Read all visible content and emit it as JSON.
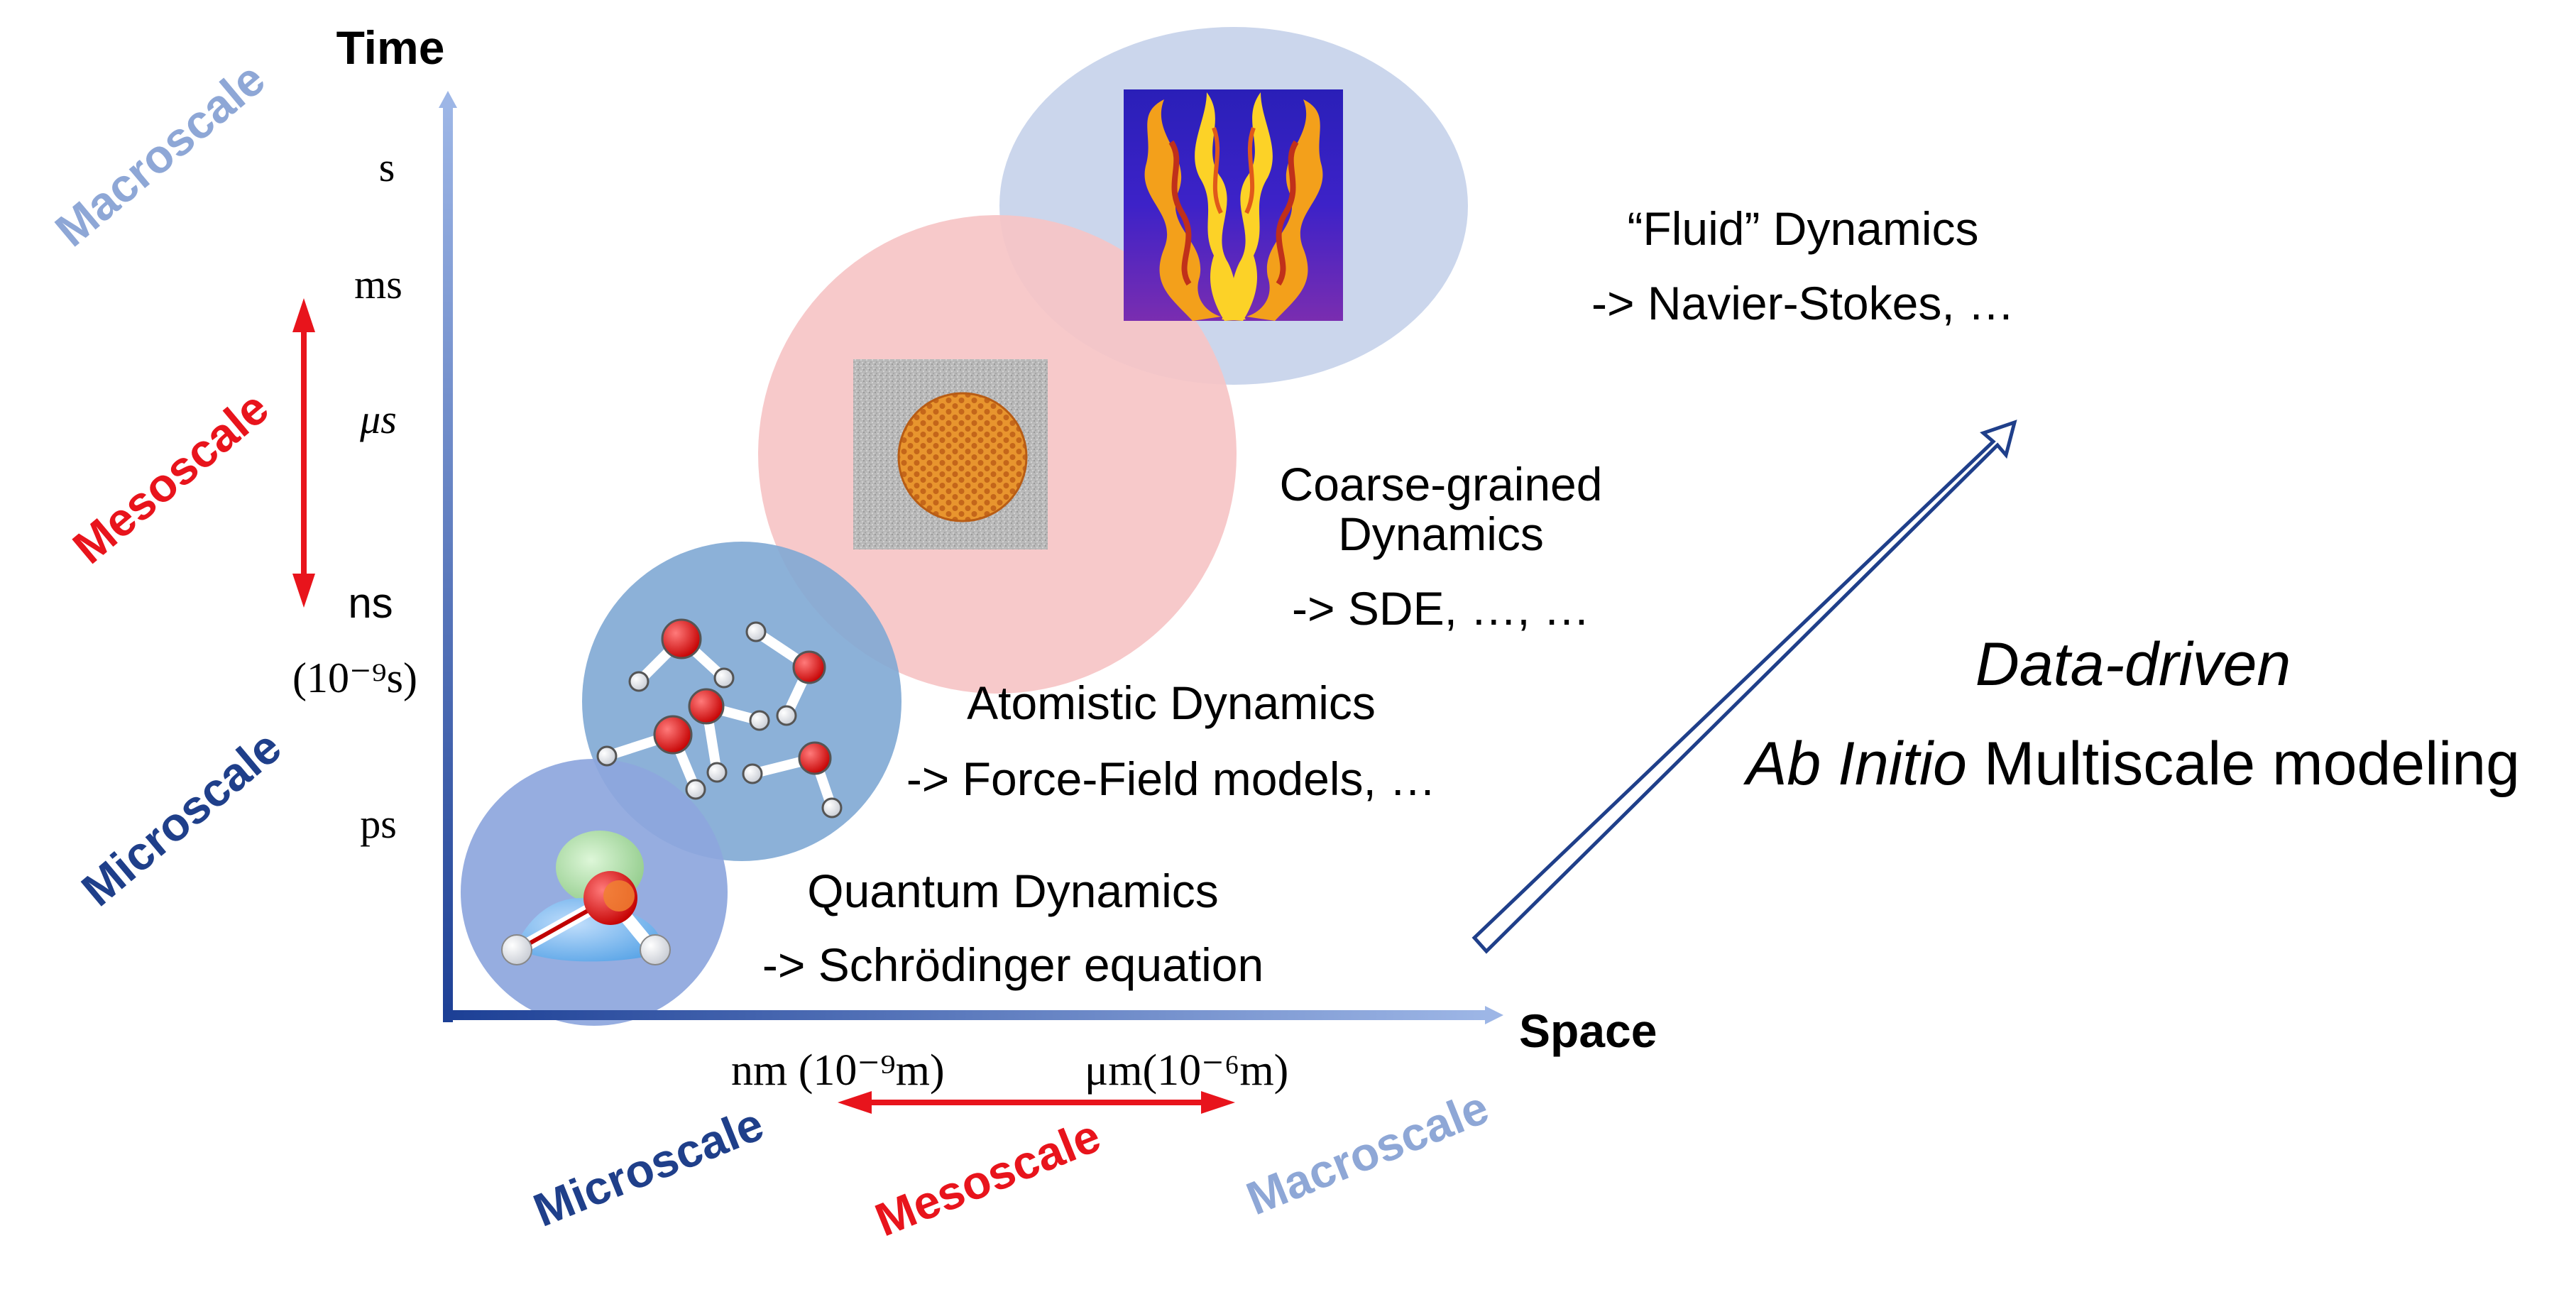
{
  "axes": {
    "time_label": "Time",
    "space_label": "Space",
    "time_ticks": [
      {
        "label": "s"
      },
      {
        "label": "ms"
      },
      {
        "label": "μs"
      },
      {
        "label": "ns"
      },
      {
        "label": "(10⁻⁹s)"
      },
      {
        "label": "ps"
      }
    ],
    "space_ticks": [
      {
        "label": "nm (10⁻⁹m)"
      },
      {
        "label": "μm(10⁻⁶m)"
      }
    ]
  },
  "scales": {
    "vertical": {
      "macro": "Macroscale",
      "meso": "Mesoscale",
      "micro": "Microscale"
    },
    "horizontal": {
      "micro": "Microscale",
      "meso": "Mesoscale",
      "macro": "Macroscale"
    }
  },
  "levels": {
    "quantum": {
      "title": "Quantum Dynamics",
      "model": "-> Schrödinger equation"
    },
    "atomistic": {
      "title": "Atomistic Dynamics",
      "model": "-> Force-Field models, …"
    },
    "coarse": {
      "title_line1": "Coarse-grained",
      "title_line2": "Dynamics",
      "model": "-> SDE, …, …"
    },
    "fluid": {
      "title": "“Fluid” Dynamics",
      "model": "->  Navier-Stokes, …"
    }
  },
  "headline": {
    "line1": "Data-driven",
    "line2_italic": "Ab Initio",
    "line2_rest": " Multiscale modeling"
  },
  "colors": {
    "micro": "#1f3f8a",
    "meso": "#e8141c",
    "macro": "#8ea7d6",
    "axis": "#3a5fb0",
    "bubble_quantum": "#8da6dd",
    "bubble_atomistic": "#7fa8d4",
    "bubble_coarse": "#f6c4c6",
    "bubble_fluid": "#cbd6ec",
    "oxygen": "#e01010",
    "particle": "#d8801c"
  }
}
